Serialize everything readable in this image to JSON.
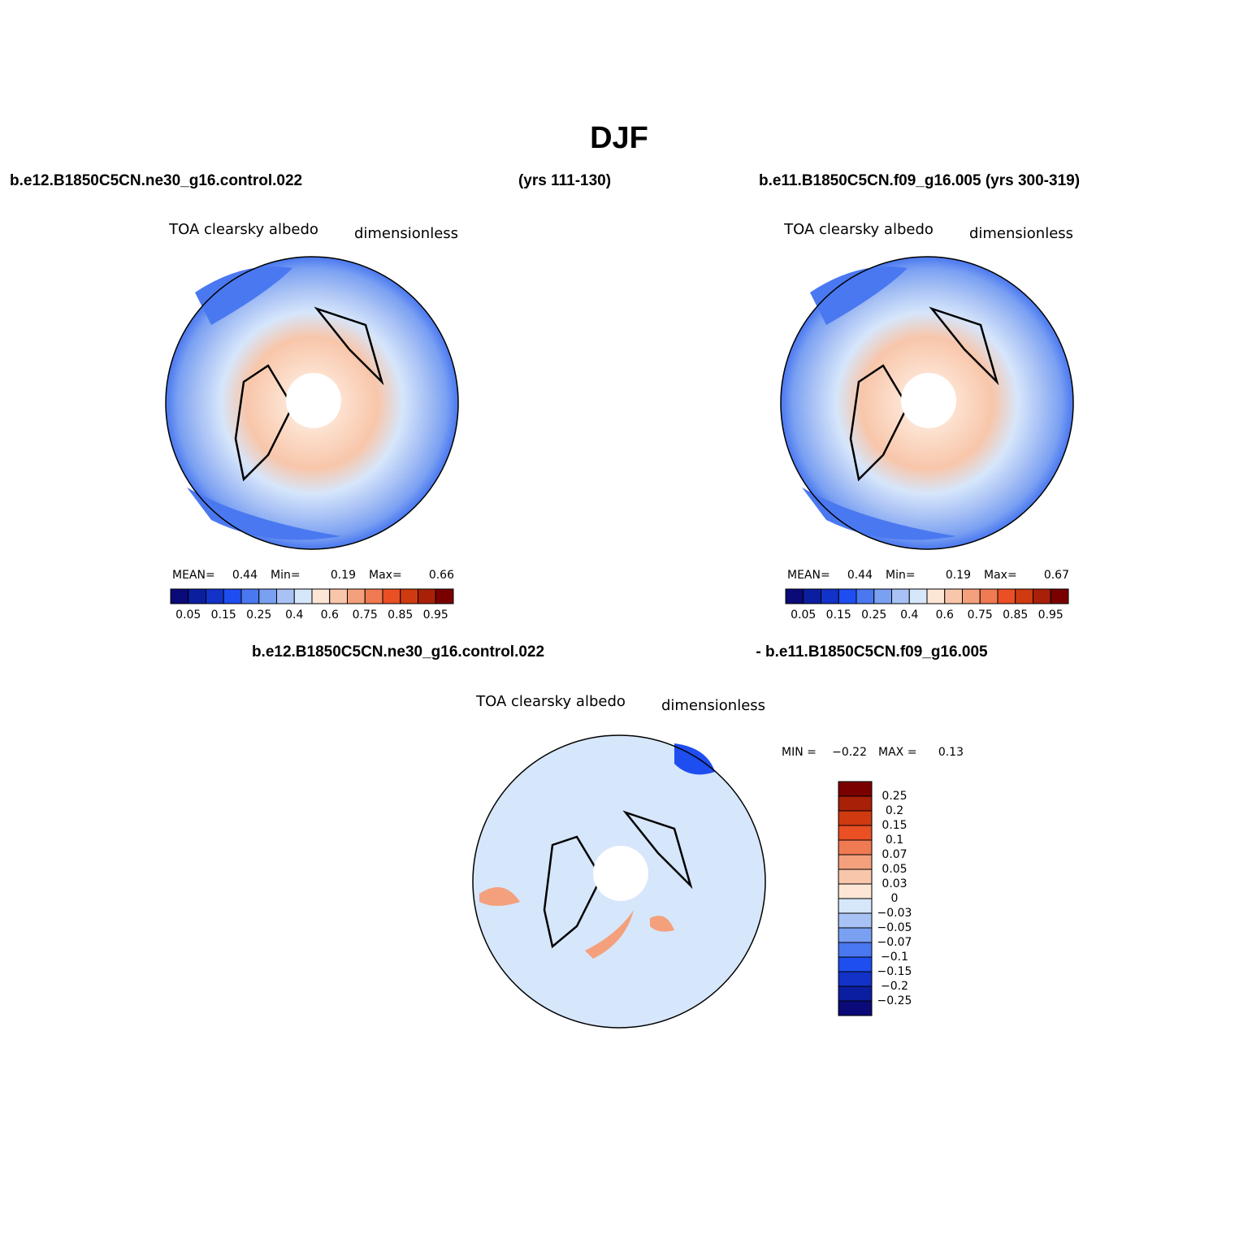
{
  "title": "DJF",
  "panels": [
    {
      "case": "b.e12.B1850C5CN.ne30_g16.control.022",
      "years": "(yrs 111-130)",
      "variable": "TOA clearsky albedo",
      "units": "dimensionless",
      "stats": [
        {
          "label": "MEAN=",
          "value": "0.44"
        },
        {
          "label": "Min=",
          "value": "0.19"
        },
        {
          "label": "Max=",
          "value": "0.66"
        }
      ]
    },
    {
      "case": "b.e11.B1850C5CN.f09_g16.005 (yrs 300-319)",
      "variable": "TOA clearsky albedo",
      "units": "dimensionless",
      "stats": [
        {
          "label": "MEAN=",
          "value": "0.44"
        },
        {
          "label": "Min=",
          "value": "0.19"
        },
        {
          "label": "Max=",
          "value": "0.67"
        }
      ]
    }
  ],
  "colorbar": {
    "colors": [
      "#0a0a78",
      "#0c1ea0",
      "#1232c8",
      "#1e4ef0",
      "#4a78f0",
      "#7aa0f2",
      "#a9c2f5",
      "#d6e6fb",
      "#fde6d6",
      "#f8c6aa",
      "#f4a07c",
      "#f07a52",
      "#ea5024",
      "#d03a10",
      "#a82008",
      "#7a0000"
    ],
    "labels": [
      "0.05",
      "0.15",
      "0.25",
      "0.4",
      "0.6",
      "0.75",
      "0.85",
      "0.95"
    ]
  },
  "difference": {
    "case": "b.e12.B1850C5CN.ne30_g16.control.022",
    "minus_case": "- b.e11.B1850C5CN.f09_g16.005",
    "variable": "TOA clearsky albedo",
    "units": "dimensionless",
    "stats": [
      {
        "label": "MIN =",
        "value": "−0.22"
      },
      {
        "label": "MAX =",
        "value": "0.13"
      }
    ],
    "colorbar": {
      "colors": [
        "#7a0000",
        "#a82008",
        "#d03a10",
        "#ea5024",
        "#f07a52",
        "#f4a07c",
        "#f8c6aa",
        "#fde6d6",
        "#d6e6fb",
        "#a9c2f5",
        "#7aa0f2",
        "#4a78f0",
        "#1e4ef0",
        "#1232c8",
        "#0c1ea0",
        "#0a0a78"
      ],
      "labels": [
        "0.25",
        "0.2",
        "0.15",
        "0.1",
        "0.07",
        "0.05",
        "0.03",
        "0",
        "−0.03",
        "−0.05",
        "−0.07",
        "−0.1",
        "−0.15",
        "−0.2",
        "−0.25"
      ]
    }
  }
}
